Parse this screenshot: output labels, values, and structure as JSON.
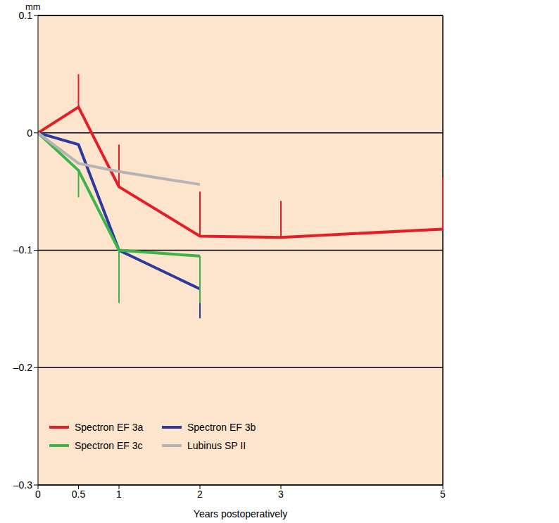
{
  "chart_data": {
    "type": "line",
    "ylabel": "mm",
    "xlabel": "Years postoperatively",
    "xlim": [
      0,
      5
    ],
    "xticks": [
      0,
      0.5,
      1,
      2,
      3,
      5
    ],
    "ylim": [
      -0.3,
      0.1
    ],
    "yticks": [
      {
        "value": -0.3,
        "label": "–0.3"
      },
      {
        "value": -0.2,
        "label": "–0.2"
      },
      {
        "value": -0.1,
        "label": "–0.1"
      },
      0,
      0.1
    ],
    "grid": true,
    "legend": "lower left",
    "series": [
      {
        "name": "Spectron EF 3a",
        "color": "#e31e24",
        "x": [
          0,
          0.5,
          1,
          2,
          3,
          5
        ],
        "values": [
          0,
          0.022,
          -0.046,
          -0.088,
          -0.089,
          -0.082
        ],
        "error_up": [
          null,
          0.028,
          0.036,
          0.038,
          0.031,
          0.044
        ]
      },
      {
        "name": "Spectron EF 3b",
        "color": "#2b3a9c",
        "x": [
          0,
          0.5,
          1,
          2
        ],
        "values": [
          0,
          -0.01,
          -0.1,
          -0.133
        ],
        "error_down": [
          null,
          null,
          0.025,
          0.025
        ]
      },
      {
        "name": "Spectron EF 3c",
        "color": "#3cb44a",
        "x": [
          0,
          0.5,
          1,
          2
        ],
        "values": [
          0,
          -0.032,
          -0.1,
          -0.105
        ],
        "error_down": [
          null,
          0.023,
          0.045,
          0.04
        ]
      },
      {
        "name": "Lubinus SP II",
        "color": "#b4b4b4",
        "x": [
          0,
          0.5,
          1,
          2
        ],
        "values": [
          0,
          -0.026,
          -0.033,
          -0.044
        ]
      }
    ]
  }
}
